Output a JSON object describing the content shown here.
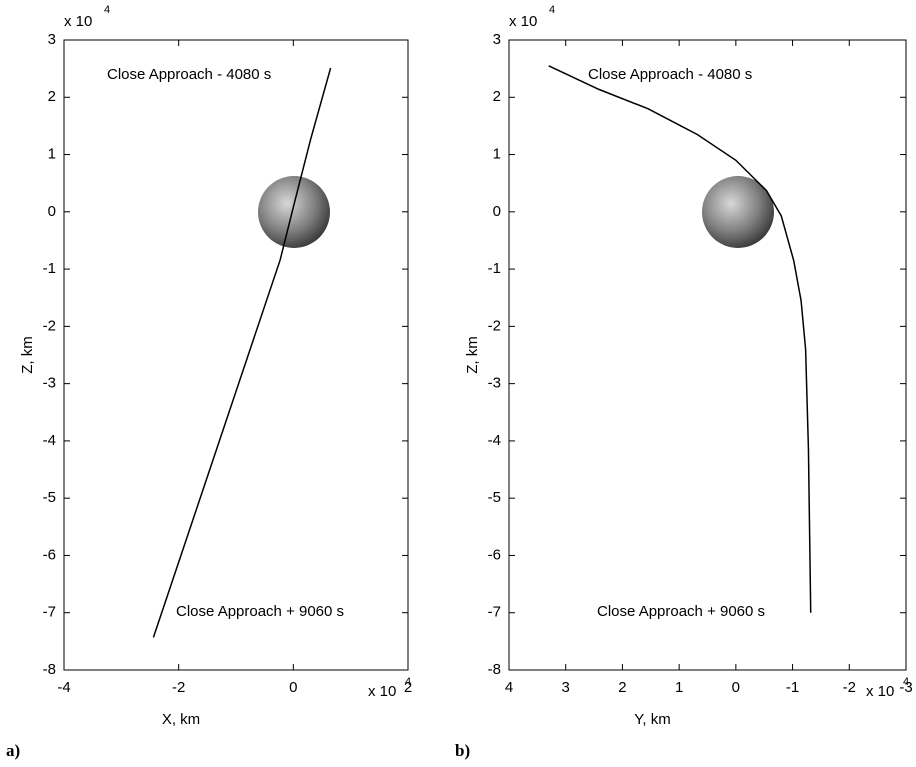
{
  "chart_data": [
    {
      "type": "line",
      "panel_label": "a)",
      "xlabel": "X, km",
      "ylabel": "Z, km",
      "x_multiplier": {
        "base": "x 10",
        "exponent": "4"
      },
      "y_multiplier": {
        "base": "x 10",
        "exponent": "4"
      },
      "annotations": [
        "Close Approach - 4080 s",
        "Close Approach + 9060 s"
      ],
      "xlim": [
        -4,
        2
      ],
      "ylim": [
        -8,
        3
      ],
      "xticks": [
        -4,
        -2,
        0,
        2
      ],
      "yticks": [
        -8,
        -7,
        -6,
        -5,
        -4,
        -3,
        -2,
        -1,
        0,
        1,
        2,
        3
      ],
      "series": [
        {
          "color": "#000000",
          "x": [
            0.65,
            0.3,
            0.03,
            -0.23,
            -2.44
          ],
          "values": [
            2.51,
            1.26,
            0.2,
            -0.84,
            -7.43
          ]
        }
      ]
    },
    {
      "type": "line",
      "panel_label": "b)",
      "xlabel": "Y, km",
      "ylabel": "Z, km",
      "x_multiplier": {
        "base": "x 10",
        "exponent": "4"
      },
      "y_multiplier": {
        "base": "x 10",
        "exponent": "4"
      },
      "annotations": [
        "Close Approach - 4080 s",
        "Close Approach + 9060 s"
      ],
      "xlim": [
        4,
        -3
      ],
      "ylim": [
        -8,
        3
      ],
      "xticks": [
        4,
        3,
        2,
        1,
        0,
        -1,
        -2,
        -3
      ],
      "yticks": [
        -8,
        -7,
        -6,
        -5,
        -4,
        -3,
        -2,
        -1,
        0,
        1,
        2,
        3
      ],
      "series": [
        {
          "color": "#000000",
          "x": [
            3.3,
            2.42,
            1.55,
            0.68,
            0,
            -0.54,
            -0.8,
            -1.02,
            -1.15,
            -1.23,
            -1.28,
            -1.32
          ],
          "values": [
            2.55,
            2.14,
            1.8,
            1.35,
            0.9,
            0.37,
            -0.07,
            -0.85,
            -1.55,
            -2.4,
            -4.15,
            -7.0
          ]
        }
      ]
    }
  ]
}
